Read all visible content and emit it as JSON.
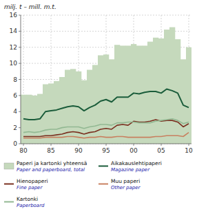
{
  "chart_data": {
    "type": "bar",
    "y_label": "milj. t – mill. m.t.",
    "categories": [
      "80",
      null,
      null,
      null,
      null,
      "85",
      null,
      null,
      null,
      null,
      "90",
      null,
      null,
      null,
      null,
      "95",
      null,
      null,
      null,
      null,
      "00",
      null,
      null,
      null,
      null,
      "05",
      null,
      null,
      null,
      null,
      "10"
    ],
    "series": [
      {
        "name": "Paperi ja kartonki yhteensä\nPaper and paperboard, total",
        "type": "bar",
        "color": "#c5d9bc",
        "values": [
          6.1,
          6.1,
          6.0,
          6.2,
          7.4,
          7.5,
          7.8,
          8.3,
          9.2,
          9.3,
          9.0,
          7.9,
          9.2,
          9.8,
          11.0,
          11.1,
          10.5,
          12.3,
          12.2,
          12.2,
          12.4,
          12.2,
          12.2,
          12.7,
          13.2,
          13.1,
          14.2,
          14.5,
          13.0,
          10.5,
          12.0
        ]
      },
      {
        "name": "Aikakauslehtipaperi\nMagazine paper",
        "type": "line",
        "color": "#1a5c3a",
        "values": [
          3.1,
          3.0,
          3.0,
          3.1,
          4.0,
          4.1,
          4.2,
          4.4,
          4.6,
          4.7,
          4.6,
          4.1,
          4.5,
          4.8,
          5.3,
          5.5,
          5.2,
          5.8,
          5.8,
          5.8,
          6.3,
          6.2,
          6.4,
          6.5,
          6.5,
          6.3,
          6.8,
          6.6,
          6.3,
          4.8,
          4.5
        ]
      },
      {
        "name": "Hienopaperi\nFine paper",
        "type": "line",
        "color": "#7a3020",
        "values": [
          0.9,
          0.9,
          0.9,
          0.9,
          1.0,
          1.0,
          1.1,
          1.2,
          1.4,
          1.5,
          1.4,
          1.2,
          1.4,
          1.5,
          1.8,
          1.9,
          1.8,
          2.3,
          2.4,
          2.3,
          2.8,
          2.7,
          2.7,
          2.8,
          3.0,
          2.8,
          2.9,
          2.9,
          2.7,
          2.1,
          2.5
        ]
      },
      {
        "name": "Muu paperi\nOther paper",
        "type": "line",
        "color": "#c88060",
        "values": [
          0.7,
          0.7,
          0.7,
          0.7,
          0.8,
          0.8,
          0.8,
          0.8,
          0.9,
          0.9,
          0.8,
          0.7,
          0.8,
          0.8,
          0.9,
          0.8,
          0.8,
          0.9,
          0.9,
          0.8,
          0.8,
          0.8,
          0.8,
          0.8,
          0.9,
          0.9,
          1.0,
          1.0,
          1.0,
          0.9,
          1.4
        ]
      },
      {
        "name": "Kartonki\nPaperboard",
        "type": "line",
        "color": "#92b892",
        "values": [
          1.4,
          1.5,
          1.4,
          1.5,
          1.7,
          1.8,
          1.8,
          2.0,
          2.1,
          2.1,
          2.1,
          1.9,
          2.1,
          2.2,
          2.4,
          2.4,
          2.3,
          2.6,
          2.6,
          2.7,
          2.7,
          2.6,
          2.6,
          2.6,
          2.8,
          2.9,
          3.0,
          3.1,
          2.9,
          2.5,
          2.7
        ]
      }
    ],
    "ylim": [
      0,
      16
    ],
    "yticks": [
      0,
      2,
      4,
      6,
      8,
      10,
      12,
      14,
      16
    ],
    "grid": true,
    "legend": "bottom"
  }
}
